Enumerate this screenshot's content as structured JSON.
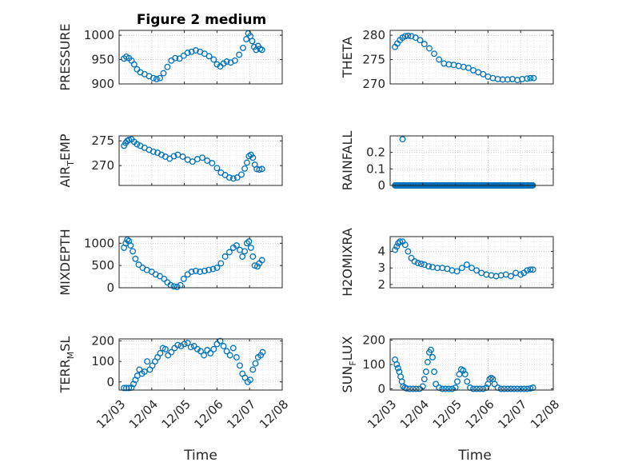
{
  "figure_title": "Figure 2 medium",
  "x_tick_labels": [
    "12/03",
    "12/04",
    "12/05",
    "12/06",
    "12/07",
    "12/08"
  ],
  "x_label": "Time",
  "marker_color": "#0072BD",
  "chart_data": [
    {
      "id": "pressure",
      "type": "scatter",
      "title": "Figure 2 medium",
      "ylabel": "PRESSURE",
      "ylim": [
        900,
        1010
      ],
      "yticks": [
        900,
        950,
        1000
      ],
      "xlim": [
        0,
        5
      ],
      "grid": true,
      "x": [
        0.15,
        0.22,
        0.3,
        0.38,
        0.46,
        0.55,
        0.65,
        0.78,
        0.92,
        1.05,
        1.15,
        1.25,
        1.36,
        1.48,
        1.6,
        1.72,
        1.85,
        1.98,
        2.1,
        2.22,
        2.35,
        2.48,
        2.62,
        2.76,
        2.9,
        3.0,
        3.1,
        3.2,
        3.3,
        3.42,
        3.55,
        3.68,
        3.8,
        3.9,
        3.96,
        4.02,
        4.08,
        4.14,
        4.2,
        4.26,
        4.32,
        4.38
      ],
      "y": [
        952,
        956,
        953,
        948,
        940,
        930,
        924,
        920,
        916,
        912,
        910,
        912,
        922,
        935,
        948,
        953,
        952,
        958,
        964,
        966,
        969,
        966,
        962,
        957,
        950,
        940,
        936,
        942,
        946,
        944,
        948,
        960,
        974,
        992,
        1004,
        998,
        988,
        976,
        970,
        978,
        972,
        970
      ]
    },
    {
      "id": "theta",
      "type": "scatter",
      "ylabel": "THETA",
      "ylim": [
        270,
        281
      ],
      "yticks": [
        270,
        275,
        280
      ],
      "xlim": [
        0,
        5
      ],
      "grid": true,
      "x": [
        0.15,
        0.22,
        0.3,
        0.38,
        0.46,
        0.55,
        0.65,
        0.78,
        0.92,
        1.05,
        1.2,
        1.35,
        1.5,
        1.65,
        1.8,
        1.95,
        2.1,
        2.25,
        2.4,
        2.55,
        2.7,
        2.85,
        3.0,
        3.15,
        3.3,
        3.45,
        3.6,
        3.75,
        3.9,
        4.05,
        4.2,
        4.3,
        4.4
      ],
      "y": [
        277.6,
        278.3,
        279.0,
        279.5,
        279.8,
        279.9,
        279.8,
        279.5,
        279.0,
        278.2,
        277.3,
        276.2,
        275.0,
        274.2,
        274.0,
        273.9,
        273.7,
        273.5,
        273.3,
        272.8,
        272.4,
        272.0,
        271.5,
        271.2,
        271.0,
        270.9,
        270.9,
        271.0,
        270.8,
        271.0,
        271.1,
        271.2,
        271.2
      ]
    },
    {
      "id": "air_temp",
      "type": "scatter",
      "ylabel": "AIR",
      "ylabel_sub": "T",
      "ylabel_tail": "EMP",
      "ylim": [
        266,
        276
      ],
      "yticks": [
        270,
        275
      ],
      "xlim": [
        0,
        5
      ],
      "grid": true,
      "x": [
        0.15,
        0.2,
        0.25,
        0.3,
        0.38,
        0.46,
        0.55,
        0.65,
        0.78,
        0.92,
        1.05,
        1.18,
        1.3,
        1.42,
        1.55,
        1.68,
        1.8,
        1.95,
        2.1,
        2.25,
        2.4,
        2.55,
        2.7,
        2.85,
        3.0,
        3.12,
        3.25,
        3.38,
        3.5,
        3.62,
        3.75,
        3.85,
        3.92,
        3.98,
        4.04,
        4.1,
        4.16,
        4.22,
        4.3,
        4.38
      ],
      "y": [
        274.0,
        274.6,
        275.0,
        275.2,
        275.3,
        274.8,
        274.3,
        274.0,
        273.6,
        273.2,
        272.8,
        272.6,
        272.2,
        271.8,
        271.4,
        271.9,
        272.2,
        271.8,
        271.2,
        270.8,
        271.3,
        271.6,
        271.0,
        270.5,
        269.5,
        268.6,
        268.1,
        267.6,
        267.4,
        267.6,
        268.2,
        269.4,
        270.6,
        271.9,
        272.2,
        271.6,
        270.2,
        269.3,
        269.2,
        269.3
      ]
    },
    {
      "id": "rainfall",
      "type": "scatter",
      "ylabel": "RAINFALL",
      "ylim": [
        0,
        0.3
      ],
      "yticks": [
        0,
        0.1,
        0.2
      ],
      "xlim": [
        0,
        5
      ],
      "grid": true,
      "x_start": 0.15,
      "x_end": 4.38,
      "x_step": 0.025,
      "baseline_value": 0,
      "spike": {
        "x": 0.38,
        "y": 0.28
      }
    },
    {
      "id": "mixdepth",
      "type": "scatter",
      "ylabel": "MIXDEPTH",
      "ylim": [
        0,
        1150
      ],
      "yticks": [
        0,
        500,
        1000
      ],
      "xlim": [
        0,
        5
      ],
      "grid": true,
      "x": [
        0.15,
        0.2,
        0.25,
        0.3,
        0.35,
        0.42,
        0.5,
        0.6,
        0.72,
        0.85,
        1.0,
        1.12,
        1.25,
        1.38,
        1.48,
        1.58,
        1.68,
        1.78,
        1.88,
        1.98,
        2.1,
        2.22,
        2.35,
        2.48,
        2.62,
        2.75,
        2.88,
        3.0,
        3.12,
        3.25,
        3.38,
        3.5,
        3.6,
        3.7,
        3.78,
        3.85,
        3.92,
        3.98,
        4.04,
        4.1,
        4.16,
        4.24,
        4.3,
        4.38
      ],
      "y": [
        900,
        1000,
        1080,
        1050,
        950,
        820,
        650,
        520,
        450,
        400,
        360,
        300,
        260,
        200,
        120,
        60,
        30,
        20,
        60,
        200,
        300,
        360,
        380,
        360,
        380,
        400,
        420,
        450,
        550,
        700,
        800,
        900,
        950,
        850,
        700,
        820,
        1000,
        1040,
        900,
        700,
        500,
        480,
        550,
        620
      ]
    },
    {
      "id": "h2omixra",
      "type": "scatter",
      "ylabel": "H2OMIXRA",
      "ylim": [
        1.8,
        4.9
      ],
      "yticks": [
        2,
        3,
        4
      ],
      "xlim": [
        0,
        5
      ],
      "grid": true,
      "x": [
        0.15,
        0.2,
        0.25,
        0.3,
        0.38,
        0.46,
        0.55,
        0.65,
        0.75,
        0.85,
        0.95,
        1.05,
        1.18,
        1.3,
        1.45,
        1.6,
        1.75,
        1.9,
        2.05,
        2.2,
        2.35,
        2.5,
        2.65,
        2.8,
        2.95,
        3.1,
        3.25,
        3.4,
        3.55,
        3.7,
        3.85,
        4.0,
        4.1,
        4.2,
        4.3,
        4.38
      ],
      "y": [
        4.1,
        4.3,
        4.5,
        4.6,
        4.6,
        4.4,
        4.0,
        3.6,
        3.4,
        3.3,
        3.25,
        3.2,
        3.1,
        3.05,
        3.0,
        3.0,
        2.95,
        2.85,
        2.8,
        3.0,
        3.2,
        3.0,
        2.85,
        2.7,
        2.6,
        2.55,
        2.5,
        2.55,
        2.6,
        2.5,
        2.7,
        2.6,
        2.7,
        2.85,
        2.9,
        2.9
      ]
    },
    {
      "id": "terr_msl",
      "type": "scatter",
      "ylabel": "TERR",
      "ylabel_sub": "M",
      "ylabel_tail": "SL",
      "ylim": [
        -40,
        210
      ],
      "yticks": [
        0,
        100,
        200
      ],
      "xlim": [
        0,
        5
      ],
      "grid": true,
      "x": [
        0.15,
        0.22,
        0.3,
        0.38,
        0.44,
        0.5,
        0.56,
        0.62,
        0.7,
        0.78,
        0.86,
        0.94,
        1.02,
        1.1,
        1.18,
        1.26,
        1.34,
        1.42,
        1.5,
        1.6,
        1.7,
        1.8,
        1.9,
        2.0,
        2.1,
        2.2,
        2.3,
        2.4,
        2.5,
        2.6,
        2.7,
        2.8,
        2.9,
        3.0,
        3.1,
        3.2,
        3.3,
        3.4,
        3.5,
        3.6,
        3.7,
        3.78,
        3.86,
        3.94,
        4.02,
        4.1,
        4.18,
        4.26,
        4.34,
        4.4
      ],
      "y": [
        -30,
        -30,
        -30,
        -28,
        -10,
        10,
        30,
        60,
        40,
        50,
        100,
        60,
        80,
        100,
        120,
        140,
        165,
        160,
        130,
        145,
        165,
        180,
        175,
        185,
        190,
        170,
        175,
        160,
        150,
        130,
        155,
        140,
        160,
        185,
        200,
        175,
        150,
        130,
        165,
        120,
        80,
        40,
        20,
        0,
        10,
        60,
        90,
        120,
        130,
        145
      ]
    },
    {
      "id": "sun_flux",
      "type": "scatter",
      "ylabel": "SUN",
      "ylabel_sub": "F",
      "ylabel_tail": "LUX",
      "ylim": [
        -5,
        205
      ],
      "yticks": [
        0,
        100,
        200
      ],
      "xlim": [
        0,
        5
      ],
      "grid": true,
      "x": [
        0.15,
        0.2,
        0.24,
        0.28,
        0.32,
        0.36,
        0.4,
        0.45,
        0.5,
        0.6,
        0.7,
        0.8,
        0.9,
        1.0,
        1.05,
        1.1,
        1.15,
        1.2,
        1.25,
        1.3,
        1.35,
        1.4,
        1.5,
        1.6,
        1.7,
        1.8,
        1.9,
        2.0,
        2.06,
        2.12,
        2.18,
        2.24,
        2.3,
        2.36,
        2.45,
        2.55,
        2.65,
        2.75,
        2.85,
        2.95,
        3.0,
        3.05,
        3.1,
        3.15,
        3.2,
        3.3,
        3.4,
        3.5,
        3.6,
        3.7,
        3.8,
        3.9,
        4.0,
        4.1,
        4.2,
        4.3,
        4.38
      ],
      "y": [
        120,
        100,
        85,
        70,
        50,
        30,
        10,
        5,
        2,
        0,
        0,
        0,
        0,
        10,
        40,
        70,
        110,
        150,
        160,
        130,
        70,
        20,
        5,
        0,
        0,
        0,
        0,
        5,
        30,
        60,
        80,
        75,
        60,
        30,
        5,
        0,
        0,
        0,
        0,
        5,
        20,
        40,
        45,
        40,
        20,
        5,
        0,
        0,
        0,
        0,
        0,
        0,
        0,
        0,
        0,
        2,
        5
      ]
    }
  ]
}
